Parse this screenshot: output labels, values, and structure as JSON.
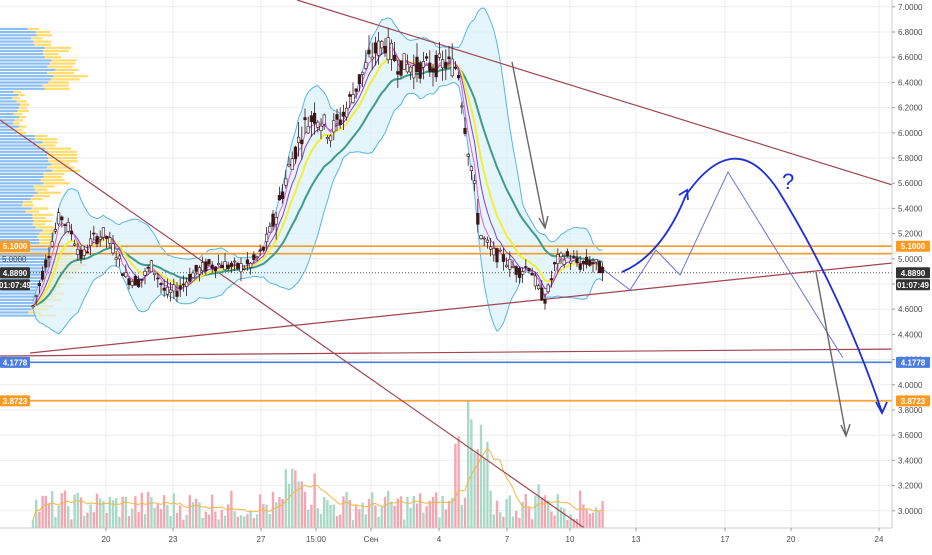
{
  "colors": {
    "grid": "#eeeeee",
    "bull": "#f4f6f8",
    "bear": "#3a1616",
    "trend": "#a24452",
    "orange": "#ff9a1f",
    "blue_level": "#4a7de0",
    "white_line": "#e0e8f3",
    "price_line": "#555555",
    "vp_blue": "#64a8f0",
    "vp_yellow": "#ffd34a",
    "bb_line": "#58b5e6",
    "bb_fill": "#d9f1fb",
    "ema_yellow": "#f4ee36",
    "ema_teal": "#3e9b8c",
    "ema_purple": "#8a3fbf",
    "ema_magenta": "#e35ce0",
    "vol_up": "#a9d9c7",
    "vol_down": "#f4a7b3",
    "vol_ma": "#f5b642",
    "forecast_blue": "#1c2fd6",
    "forecast_thin": "#6b74d6",
    "forecast_gray": "#666666"
  },
  "chart_data": {
    "type": "candlestick",
    "x_axis_ticks": [
      "20",
      "23",
      "27",
      "15:00",
      "Сен",
      "4",
      "7",
      "10",
      "13",
      "17",
      "20",
      "24"
    ],
    "y_axis_ticks": [
      "7.0000",
      "6.8000",
      "6.6000",
      "6.4000",
      "6.2000",
      "6.0000",
      "5.8000",
      "5.6000",
      "5.4000",
      "5.2000",
      "5.0000",
      "4.8000",
      "4.6000",
      "4.4000",
      "4.2000",
      "4.0000",
      "3.8000",
      "3.6000",
      "3.4000",
      "3.2000",
      "3.0000"
    ],
    "y_range": [
      2.8,
      7.0
    ],
    "price_tags": [
      {
        "label": "5.1000",
        "value": 5.1,
        "kind": "orange"
      },
      {
        "label": "5.0000",
        "value": 5.0,
        "kind": "plain"
      },
      {
        "label": "4.8890",
        "value": 4.889,
        "kind": "current"
      },
      {
        "label": "4.1778",
        "value": 4.1778,
        "kind": "blue"
      },
      {
        "label": "3.8723",
        "value": 3.8723,
        "kind": "orange"
      }
    ],
    "countdown": "01:07:49",
    "levels": [
      {
        "value": 5.1,
        "kind": "orange"
      },
      {
        "value": 5.04,
        "kind": "orange"
      },
      {
        "value": 4.1778,
        "kind": "blue"
      },
      {
        "value": 3.8723,
        "kind": "orange"
      },
      {
        "value": 4.889,
        "kind": "current"
      }
    ],
    "annotation": "?"
  }
}
